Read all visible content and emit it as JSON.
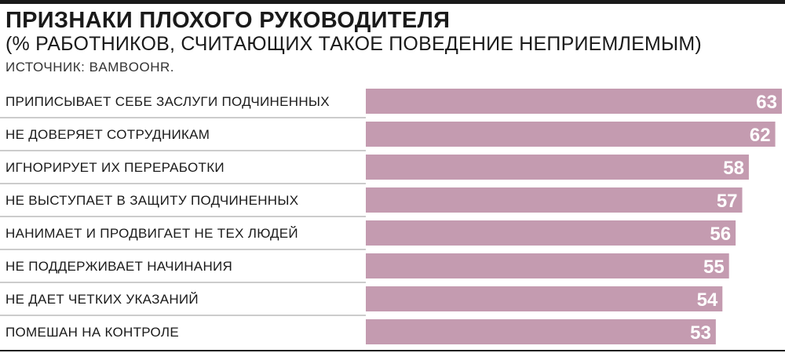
{
  "header": {
    "title": "ПРИЗНАКИ ПЛОХОГО РУКОВОДИТЕЛЯ",
    "subtitle": "(% РАБОТНИКОВ, СЧИТАЮЩИХ ТАКОЕ ПОВЕДЕНИЕ НЕПРИЕМЛЕМЫМ)",
    "source": "ИСТОЧНИК: BAMBOOHR."
  },
  "colors": {
    "bar": "#c49bb0",
    "text": "#1a1a1a",
    "value_text": "#ffffff"
  },
  "chart_data": {
    "type": "bar",
    "orientation": "horizontal",
    "title": "ПРИЗНАКИ ПЛОХОГО РУКОВОДИТЕЛЯ",
    "subtitle": "(% РАБОТНИКОВ, СЧИТАЮЩИХ ТАКОЕ ПОВЕДЕНИЕ НЕПРИЕМЛЕМЫМ)",
    "categories": [
      "ПРИПИСЫВАЕТ СЕБЕ ЗАСЛУГИ ПОДЧИНЕННЫХ",
      "НЕ ДОВЕРЯЕТ СОТРУДНИКАМ",
      "ИГНОРИРУЕТ ИХ ПЕРЕРАБОТКИ",
      "НЕ ВЫСТУПАЕТ В ЗАЩИТУ ПОДЧИНЕННЫХ",
      "НАНИМАЕТ И ПРОДВИГАЕТ НЕ ТЕХ ЛЮДЕЙ",
      "НЕ ПОДДЕРЖИВАЕТ НАЧИНАНИЯ",
      "НЕ ДАЕТ ЧЕТКИХ УКАЗАНИЙ",
      "ПОМЕШАН НА КОНТРОЛЕ"
    ],
    "values": [
      63,
      62,
      58,
      57,
      56,
      55,
      54,
      53
    ],
    "xlabel": "",
    "ylabel": "",
    "grid": false,
    "legend": "none"
  }
}
